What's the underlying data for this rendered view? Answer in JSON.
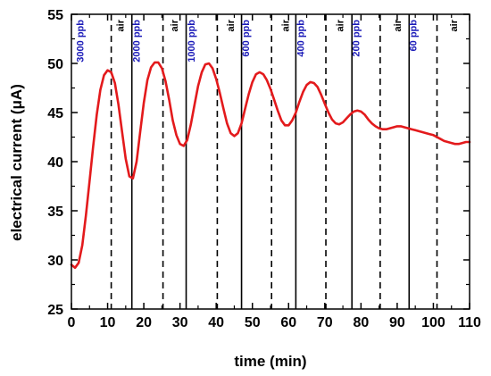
{
  "chart_data": {
    "type": "line",
    "xlabel": "time (min)",
    "ylabel": "electrical current (μA)",
    "xlim": [
      0,
      110
    ],
    "ylim": [
      25,
      55
    ],
    "xticks": [
      "0",
      "10",
      "20",
      "30",
      "40",
      "50",
      "60",
      "70",
      "80",
      "90",
      "100",
      "110"
    ],
    "yticks": [
      "25",
      "30",
      "35",
      "40",
      "45",
      "50",
      "55"
    ],
    "grid": false,
    "series": [
      {
        "color": "#e31a1c",
        "x": [
          0,
          1,
          2,
          3,
          4,
          5,
          6,
          7,
          8,
          9,
          10,
          11,
          12,
          13,
          14,
          15,
          16,
          17,
          18,
          19,
          20,
          21,
          22,
          23,
          24,
          25,
          26,
          27,
          28,
          29,
          30,
          31,
          32,
          33,
          34,
          35,
          36,
          37,
          38,
          39,
          40,
          41,
          42,
          43,
          44,
          45,
          46,
          47,
          48,
          49,
          50,
          51,
          52,
          53,
          54,
          55,
          56,
          57,
          58,
          59,
          60,
          61,
          62,
          63,
          64,
          65,
          66,
          67,
          68,
          69,
          70,
          71,
          72,
          73,
          74,
          75,
          76,
          77,
          78,
          79,
          80,
          81,
          82,
          83,
          84,
          85,
          86,
          87,
          88,
          89,
          90,
          91,
          92,
          93,
          94,
          95,
          96,
          97,
          98,
          99,
          100,
          101,
          102,
          103,
          104,
          105,
          106,
          107,
          108,
          109,
          110
        ],
        "y": [
          29.5,
          29.2,
          29.7,
          31.5,
          34.5,
          38.0,
          41.5,
          44.8,
          47.3,
          48.8,
          49.3,
          49.1,
          48.0,
          45.8,
          43.0,
          40.3,
          38.5,
          38.3,
          40.0,
          43.0,
          46.0,
          48.3,
          49.6,
          50.1,
          50.1,
          49.5,
          48.2,
          46.3,
          44.2,
          42.7,
          41.8,
          41.6,
          42.2,
          43.8,
          45.8,
          47.7,
          49.1,
          49.9,
          50.0,
          49.5,
          48.4,
          47.0,
          45.4,
          43.9,
          42.9,
          42.6,
          42.9,
          43.9,
          45.4,
          46.9,
          48.1,
          48.9,
          49.1,
          48.9,
          48.3,
          47.4,
          46.3,
          45.2,
          44.2,
          43.7,
          43.7,
          44.2,
          45.0,
          46.1,
          47.1,
          47.8,
          48.1,
          48.0,
          47.6,
          46.8,
          45.9,
          45.0,
          44.3,
          43.9,
          43.8,
          44.0,
          44.4,
          44.8,
          45.1,
          45.2,
          45.1,
          44.8,
          44.3,
          43.9,
          43.6,
          43.4,
          43.3,
          43.3,
          43.4,
          43.5,
          43.6,
          43.6,
          43.5,
          43.4,
          43.3,
          43.2,
          43.1,
          43.0,
          42.9,
          42.8,
          42.7,
          42.5,
          42.3,
          42.1,
          42.0,
          41.9,
          41.8,
          41.8,
          41.9,
          42.0,
          42.0
        ]
      }
    ],
    "annotations": {
      "ppb_color": "#1a1ab8",
      "air_color": "#000000",
      "solid_lines_x": [
        16.7,
        31.7,
        47,
        62,
        77.5,
        93.3
      ],
      "dashed_lines_x": [
        11,
        25.3,
        40.3,
        55.3,
        70.3,
        85.3,
        101
      ],
      "ppb_labels": [
        {
          "x": 3.3,
          "text": "3000 ppb"
        },
        {
          "x": 18.9,
          "text": "2000 ppb"
        },
        {
          "x": 34.0,
          "text": "1000 ppb"
        },
        {
          "x": 49.1,
          "text": "600 ppb"
        },
        {
          "x": 64.3,
          "text": "400 ppb"
        },
        {
          "x": 79.6,
          "text": "200 ppb"
        },
        {
          "x": 95.3,
          "text": "60 ppb"
        }
      ],
      "air_labels": [
        {
          "x": 14.4,
          "text": "air"
        },
        {
          "x": 29.4,
          "text": "air"
        },
        {
          "x": 44.9,
          "text": "air"
        },
        {
          "x": 60.0,
          "text": "air"
        },
        {
          "x": 75.1,
          "text": "air"
        },
        {
          "x": 91.0,
          "text": "air"
        },
        {
          "x": 106.5,
          "text": "air"
        }
      ]
    }
  }
}
